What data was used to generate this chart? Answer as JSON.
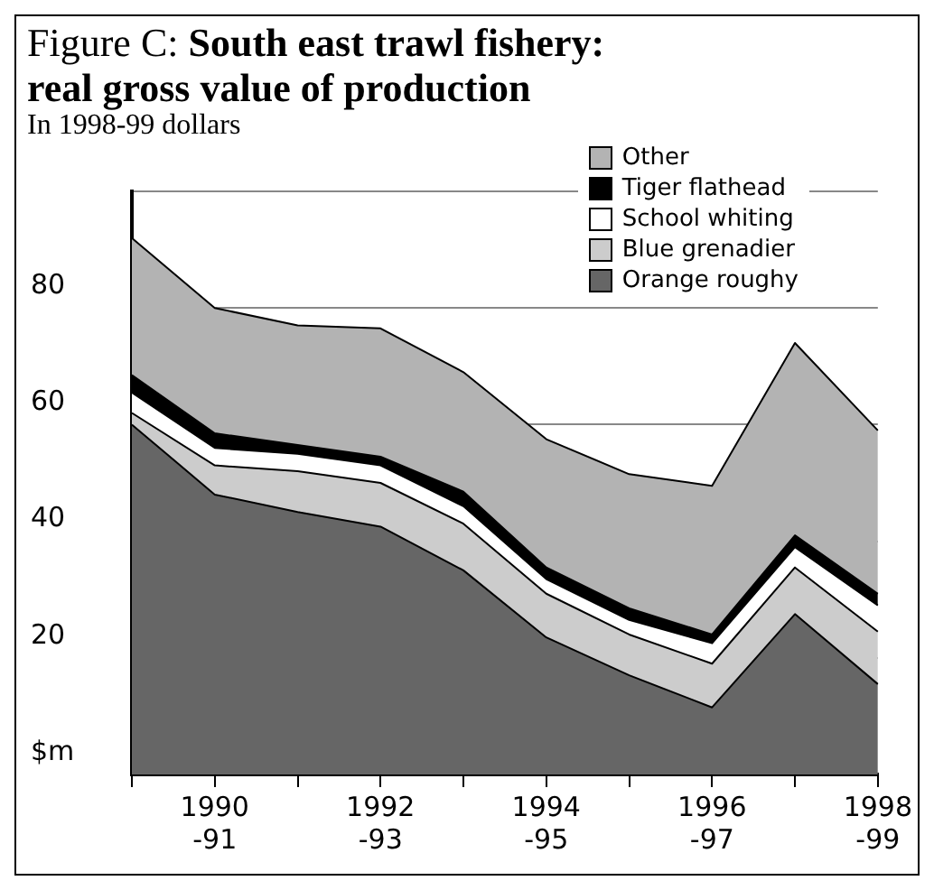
{
  "chart_data": {
    "type": "area",
    "stacked": true,
    "title": "Figure C: South east trawl fishery: real gross value of production",
    "subtitle": "In 1998-99 dollars",
    "categories": [
      null,
      "1990\n-91",
      null,
      "1992\n-93",
      null,
      "1994\n-95",
      null,
      "1996\n-97",
      null,
      "1998\n-99"
    ],
    "series": [
      {
        "name": "Orange roughy",
        "color": "#666666",
        "values": [
          60,
          48,
          45,
          42.5,
          35,
          23.5,
          17,
          11.5,
          27.5,
          15.5
        ]
      },
      {
        "name": "Blue grenadier",
        "color": "#cccccc",
        "values": [
          2,
          5,
          7,
          7.5,
          8,
          7.5,
          7,
          7.5,
          8,
          9
        ]
      },
      {
        "name": "School whiting",
        "color": "#ffffff",
        "values": [
          3.5,
          3,
          3,
          3,
          3,
          2.5,
          2.5,
          3.5,
          3.5,
          4.5
        ]
      },
      {
        "name": "Tiger flathead",
        "color": "#000000",
        "values": [
          3,
          2.5,
          1.5,
          1.5,
          2.5,
          2,
          2,
          1.5,
          2,
          2
        ]
      },
      {
        "name": "Other",
        "color": "#b3b3b3",
        "values": [
          23.5,
          21.5,
          20.5,
          22,
          20.5,
          22,
          23,
          25.5,
          33,
          28
        ]
      }
    ],
    "ylim": [
      0,
      100
    ],
    "yticks": [
      {
        "value": 0,
        "label": "$m"
      },
      20,
      40,
      60,
      80,
      {
        "value": 100,
        "label": null
      }
    ],
    "grid": "y",
    "legend": "top right"
  }
}
